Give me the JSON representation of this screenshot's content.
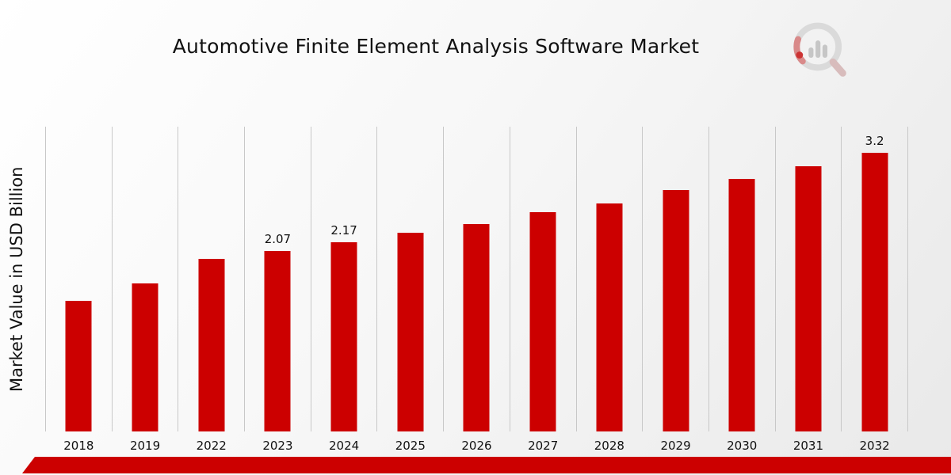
{
  "title": "Automotive Finite Element Analysis Software Market",
  "y_axis_label": "Market Value in USD Billion",
  "colors": {
    "bar": "#cc0000",
    "ribbon": "#cc0000",
    "gridline": "#c8c8c8",
    "text": "#111111"
  },
  "branding": {
    "logo_name": "market-research-future-logo"
  },
  "chart_data": {
    "type": "bar",
    "title": "Automotive Finite Element Analysis Software Market",
    "xlabel": "",
    "ylabel": "Market Value in USD Billion",
    "categories": [
      "2018",
      "2019",
      "2022",
      "2023",
      "2024",
      "2025",
      "2026",
      "2027",
      "2028",
      "2029",
      "2030",
      "2031",
      "2032"
    ],
    "values": [
      1.5,
      1.7,
      1.98,
      2.07,
      2.17,
      2.28,
      2.38,
      2.52,
      2.62,
      2.77,
      2.9,
      3.05,
      3.2
    ],
    "data_labels": [
      "",
      "",
      "",
      "2.07",
      "2.17",
      "",
      "",
      "",
      "",
      "",
      "",
      "",
      "3.2"
    ],
    "ylim": [
      0,
      3.5
    ],
    "grid": "vertical-category-gridlines-only",
    "legend": "none",
    "bar_color": "#cc0000"
  }
}
